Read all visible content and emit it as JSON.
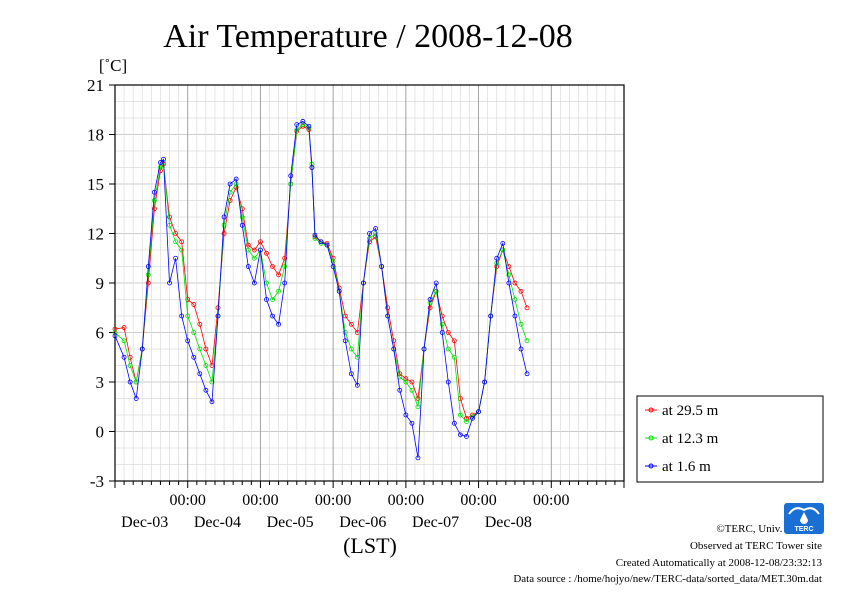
{
  "chart_data": {
    "type": "line",
    "title": "Air Temperature / 2008-12-08",
    "ylabel": "[˚C]",
    "xlabel": "(LST)",
    "ylim": [
      -3,
      21
    ],
    "yticks": [
      -3,
      0,
      3,
      6,
      9,
      12,
      15,
      18,
      21
    ],
    "xlim": [
      "2008-12-02 00:00",
      "2008-12-09 00:00"
    ],
    "xticks": [
      {
        "time": "00:00",
        "date": "Dec-03",
        "x": "2008-12-03 00:00"
      },
      {
        "time": "00:00",
        "date": "Dec-04",
        "x": "2008-12-04 00:00"
      },
      {
        "time": "00:00",
        "date": "Dec-05",
        "x": "2008-12-05 00:00"
      },
      {
        "time": "00:00",
        "date": "Dec-06",
        "x": "2008-12-06 00:00"
      },
      {
        "time": "00:00",
        "date": "Dec-07",
        "x": "2008-12-07 00:00"
      },
      {
        "time": "00:00",
        "date": "Dec-08",
        "x": "2008-12-08 00:00"
      }
    ],
    "grid": true,
    "legend_position": "right",
    "series": [
      {
        "name": "at 29.5 m",
        "color": "#ff0000",
        "points": [
          [
            "2008-12-02 00:00",
            6.2
          ],
          [
            "2008-12-02 03:00",
            6.3
          ],
          [
            "2008-12-02 05:00",
            4.5
          ],
          [
            "2008-12-02 07:00",
            3.0
          ],
          [
            "2008-12-02 09:00",
            5.0
          ],
          [
            "2008-12-02 11:00",
            9.0
          ],
          [
            "2008-12-02 13:00",
            13.5
          ],
          [
            "2008-12-02 15:00",
            15.8
          ],
          [
            "2008-12-02 16:00",
            16.2
          ],
          [
            "2008-12-02 18:00",
            13.0
          ],
          [
            "2008-12-02 20:00",
            12.0
          ],
          [
            "2008-12-02 22:00",
            11.5
          ],
          [
            "2008-12-03 00:00",
            8.0
          ],
          [
            "2008-12-03 02:00",
            7.7
          ],
          [
            "2008-12-03 04:00",
            6.5
          ],
          [
            "2008-12-03 06:00",
            5.0
          ],
          [
            "2008-12-03 08:00",
            4.0
          ],
          [
            "2008-12-03 10:00",
            7.5
          ],
          [
            "2008-12-03 12:00",
            12.0
          ],
          [
            "2008-12-03 14:00",
            14.0
          ],
          [
            "2008-12-03 16:00",
            14.8
          ],
          [
            "2008-12-03 18:00",
            13.5
          ],
          [
            "2008-12-03 20:00",
            11.3
          ],
          [
            "2008-12-03 22:00",
            11.0
          ],
          [
            "2008-12-04 00:00",
            11.5
          ],
          [
            "2008-12-04 02:00",
            10.8
          ],
          [
            "2008-12-04 04:00",
            10.0
          ],
          [
            "2008-12-04 06:00",
            9.5
          ],
          [
            "2008-12-04 08:00",
            10.5
          ],
          [
            "2008-12-04 10:00",
            15.0
          ],
          [
            "2008-12-04 12:00",
            18.2
          ],
          [
            "2008-12-04 14:00",
            18.5
          ],
          [
            "2008-12-04 16:00",
            18.3
          ],
          [
            "2008-12-04 17:00",
            16.0
          ],
          [
            "2008-12-04 18:00",
            11.8
          ],
          [
            "2008-12-04 20:00",
            11.5
          ],
          [
            "2008-12-04 22:00",
            11.4
          ],
          [
            "2008-12-05 00:00",
            10.5
          ],
          [
            "2008-12-05 02:00",
            8.7
          ],
          [
            "2008-12-05 04:00",
            7.0
          ],
          [
            "2008-12-05 06:00",
            6.5
          ],
          [
            "2008-12-05 08:00",
            6.0
          ],
          [
            "2008-12-05 10:00",
            9.0
          ],
          [
            "2008-12-05 12:00",
            11.5
          ],
          [
            "2008-12-05 14:00",
            11.8
          ],
          [
            "2008-12-05 16:00",
            10.0
          ],
          [
            "2008-12-05 18:00",
            7.5
          ],
          [
            "2008-12-05 20:00",
            5.5
          ],
          [
            "2008-12-05 22:00",
            3.5
          ],
          [
            "2008-12-06 00:00",
            3.2
          ],
          [
            "2008-12-06 02:00",
            3.0
          ],
          [
            "2008-12-06 04:00",
            2.0
          ],
          [
            "2008-12-06 06:00",
            5.0
          ],
          [
            "2008-12-06 08:00",
            7.5
          ],
          [
            "2008-12-06 10:00",
            8.5
          ],
          [
            "2008-12-06 12:00",
            7.0
          ],
          [
            "2008-12-06 14:00",
            6.0
          ],
          [
            "2008-12-06 16:00",
            5.5
          ],
          [
            "2008-12-06 18:00",
            2.0
          ],
          [
            "2008-12-06 20:00",
            0.8
          ],
          [
            "2008-12-06 22:00",
            1.0
          ],
          [
            "2008-12-07 00:00",
            1.2
          ],
          [
            "2008-12-07 02:00",
            3.0
          ],
          [
            "2008-12-07 04:00",
            7.0
          ],
          [
            "2008-12-07 06:00",
            10.0
          ],
          [
            "2008-12-07 08:00",
            11.0
          ],
          [
            "2008-12-07 10:00",
            10.0
          ],
          [
            "2008-12-07 12:00",
            9.0
          ],
          [
            "2008-12-07 14:00",
            8.5
          ],
          [
            "2008-12-07 16:00",
            7.5
          ]
        ]
      },
      {
        "name": "at 12.3 m",
        "color": "#00e000",
        "points": [
          [
            "2008-12-02 00:00",
            6.0
          ],
          [
            "2008-12-02 03:00",
            5.5
          ],
          [
            "2008-12-02 05:00",
            4.0
          ],
          [
            "2008-12-02 07:00",
            3.0
          ],
          [
            "2008-12-02 09:00",
            5.0
          ],
          [
            "2008-12-02 11:00",
            9.5
          ],
          [
            "2008-12-02 13:00",
            14.0
          ],
          [
            "2008-12-02 15:00",
            16.0
          ],
          [
            "2008-12-02 16:00",
            16.3
          ],
          [
            "2008-12-02 18:00",
            12.5
          ],
          [
            "2008-12-02 20:00",
            11.5
          ],
          [
            "2008-12-02 22:00",
            11.0
          ],
          [
            "2008-12-03 00:00",
            7.0
          ],
          [
            "2008-12-03 02:00",
            6.0
          ],
          [
            "2008-12-03 04:00",
            5.0
          ],
          [
            "2008-12-03 06:00",
            4.0
          ],
          [
            "2008-12-03 08:00",
            3.0
          ],
          [
            "2008-12-03 10:00",
            7.0
          ],
          [
            "2008-12-03 12:00",
            12.5
          ],
          [
            "2008-12-03 14:00",
            14.5
          ],
          [
            "2008-12-03 16:00",
            15.0
          ],
          [
            "2008-12-03 18:00",
            13.0
          ],
          [
            "2008-12-03 20:00",
            11.0
          ],
          [
            "2008-12-03 22:00",
            10.5
          ],
          [
            "2008-12-04 00:00",
            11.0
          ],
          [
            "2008-12-04 02:00",
            9.0
          ],
          [
            "2008-12-04 04:00",
            8.0
          ],
          [
            "2008-12-04 06:00",
            8.5
          ],
          [
            "2008-12-04 08:00",
            10.0
          ],
          [
            "2008-12-04 10:00",
            15.0
          ],
          [
            "2008-12-04 12:00",
            18.3
          ],
          [
            "2008-12-04 14:00",
            18.6
          ],
          [
            "2008-12-04 16:00",
            18.4
          ],
          [
            "2008-12-04 17:00",
            16.2
          ],
          [
            "2008-12-04 18:00",
            11.7
          ],
          [
            "2008-12-04 20:00",
            11.4
          ],
          [
            "2008-12-04 22:00",
            11.3
          ],
          [
            "2008-12-05 00:00",
            10.3
          ],
          [
            "2008-12-05 02:00",
            8.5
          ],
          [
            "2008-12-05 04:00",
            6.0
          ],
          [
            "2008-12-05 06:00",
            5.0
          ],
          [
            "2008-12-05 08:00",
            4.5
          ],
          [
            "2008-12-05 10:00",
            9.0
          ],
          [
            "2008-12-05 12:00",
            11.7
          ],
          [
            "2008-12-05 14:00",
            12.0
          ],
          [
            "2008-12-05 16:00",
            10.0
          ],
          [
            "2008-12-05 18:00",
            7.0
          ],
          [
            "2008-12-05 20:00",
            5.0
          ],
          [
            "2008-12-05 22:00",
            3.3
          ],
          [
            "2008-12-06 00:00",
            3.0
          ],
          [
            "2008-12-06 02:00",
            2.5
          ],
          [
            "2008-12-06 04:00",
            1.5
          ],
          [
            "2008-12-06 06:00",
            5.0
          ],
          [
            "2008-12-06 08:00",
            7.8
          ],
          [
            "2008-12-06 10:00",
            8.5
          ],
          [
            "2008-12-06 12:00",
            6.5
          ],
          [
            "2008-12-06 14:00",
            5.0
          ],
          [
            "2008-12-06 16:00",
            4.5
          ],
          [
            "2008-12-06 18:00",
            1.0
          ],
          [
            "2008-12-06 20:00",
            0.6
          ],
          [
            "2008-12-06 22:00",
            0.9
          ],
          [
            "2008-12-07 00:00",
            1.2
          ],
          [
            "2008-12-07 02:00",
            3.0
          ],
          [
            "2008-12-07 04:00",
            7.0
          ],
          [
            "2008-12-07 06:00",
            10.2
          ],
          [
            "2008-12-07 08:00",
            11.0
          ],
          [
            "2008-12-07 10:00",
            9.5
          ],
          [
            "2008-12-07 12:00",
            8.0
          ],
          [
            "2008-12-07 14:00",
            6.5
          ],
          [
            "2008-12-07 16:00",
            5.5
          ]
        ]
      },
      {
        "name": "at 1.6 m",
        "color": "#0000ff",
        "points": [
          [
            "2008-12-02 00:00",
            5.8
          ],
          [
            "2008-12-02 03:00",
            4.5
          ],
          [
            "2008-12-02 05:00",
            3.0
          ],
          [
            "2008-12-02 07:00",
            2.0
          ],
          [
            "2008-12-02 09:00",
            5.0
          ],
          [
            "2008-12-02 11:00",
            10.0
          ],
          [
            "2008-12-02 13:00",
            14.5
          ],
          [
            "2008-12-02 15:00",
            16.3
          ],
          [
            "2008-12-02 16:00",
            16.5
          ],
          [
            "2008-12-02 18:00",
            9.0
          ],
          [
            "2008-12-02 20:00",
            10.5
          ],
          [
            "2008-12-02 22:00",
            7.0
          ],
          [
            "2008-12-03 00:00",
            5.5
          ],
          [
            "2008-12-03 02:00",
            4.5
          ],
          [
            "2008-12-03 04:00",
            3.5
          ],
          [
            "2008-12-03 06:00",
            2.5
          ],
          [
            "2008-12-03 08:00",
            1.8
          ],
          [
            "2008-12-03 10:00",
            7.0
          ],
          [
            "2008-12-03 12:00",
            13.0
          ],
          [
            "2008-12-03 14:00",
            15.0
          ],
          [
            "2008-12-03 16:00",
            15.3
          ],
          [
            "2008-12-03 18:00",
            12.5
          ],
          [
            "2008-12-03 20:00",
            10.0
          ],
          [
            "2008-12-03 22:00",
            9.0
          ],
          [
            "2008-12-04 00:00",
            11.0
          ],
          [
            "2008-12-04 02:00",
            8.0
          ],
          [
            "2008-12-04 04:00",
            7.0
          ],
          [
            "2008-12-04 06:00",
            6.5
          ],
          [
            "2008-12-04 08:00",
            9.0
          ],
          [
            "2008-12-04 10:00",
            15.5
          ],
          [
            "2008-12-04 12:00",
            18.6
          ],
          [
            "2008-12-04 14:00",
            18.8
          ],
          [
            "2008-12-04 16:00",
            18.5
          ],
          [
            "2008-12-04 17:00",
            16.0
          ],
          [
            "2008-12-04 18:00",
            11.9
          ],
          [
            "2008-12-04 20:00",
            11.5
          ],
          [
            "2008-12-04 22:00",
            11.3
          ],
          [
            "2008-12-05 00:00",
            10.0
          ],
          [
            "2008-12-05 02:00",
            8.5
          ],
          [
            "2008-12-05 04:00",
            5.5
          ],
          [
            "2008-12-05 06:00",
            3.5
          ],
          [
            "2008-12-05 08:00",
            2.8
          ],
          [
            "2008-12-05 10:00",
            9.0
          ],
          [
            "2008-12-05 12:00",
            12.0
          ],
          [
            "2008-12-05 14:00",
            12.3
          ],
          [
            "2008-12-05 16:00",
            10.0
          ],
          [
            "2008-12-05 18:00",
            7.0
          ],
          [
            "2008-12-05 20:00",
            5.0
          ],
          [
            "2008-12-05 22:00",
            2.5
          ],
          [
            "2008-12-06 00:00",
            1.0
          ],
          [
            "2008-12-06 02:00",
            0.5
          ],
          [
            "2008-12-06 04:00",
            -1.6
          ],
          [
            "2008-12-06 06:00",
            5.0
          ],
          [
            "2008-12-06 08:00",
            8.0
          ],
          [
            "2008-12-06 10:00",
            9.0
          ],
          [
            "2008-12-06 12:00",
            6.0
          ],
          [
            "2008-12-06 14:00",
            3.0
          ],
          [
            "2008-12-06 16:00",
            0.5
          ],
          [
            "2008-12-06 18:00",
            -0.2
          ],
          [
            "2008-12-06 20:00",
            -0.3
          ],
          [
            "2008-12-06 22:00",
            0.8
          ],
          [
            "2008-12-07 00:00",
            1.2
          ],
          [
            "2008-12-07 02:00",
            3.0
          ],
          [
            "2008-12-07 04:00",
            7.0
          ],
          [
            "2008-12-07 06:00",
            10.5
          ],
          [
            "2008-12-07 08:00",
            11.4
          ],
          [
            "2008-12-07 10:00",
            9.0
          ],
          [
            "2008-12-07 12:00",
            7.0
          ],
          [
            "2008-12-07 14:00",
            5.0
          ],
          [
            "2008-12-07 16:00",
            3.5
          ]
        ]
      }
    ]
  },
  "footer": {
    "copyright": "©TERC, Univ. Tsukuba",
    "observed": "Observed at TERC Tower site",
    "created": "Created Automatically at 2008-12-08/23:32:13",
    "source": "Data source : /home/hojyo/new/TERC-data/sorted_data/MET.30m.dat"
  },
  "logo": {
    "text": "TERC",
    "icon": "terc-logo-icon",
    "color": "#1a6fd4"
  }
}
